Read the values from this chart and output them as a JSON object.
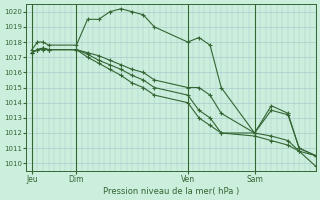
{
  "title": "Pression niveau de la mer( hPa )",
  "ylabel_values": [
    1010,
    1011,
    1012,
    1013,
    1014,
    1015,
    1016,
    1017,
    1018,
    1019,
    1020
  ],
  "ylim": [
    1009.5,
    1020.5
  ],
  "background_color": "#cceedd",
  "grid_color": "#aacccc",
  "line_color": "#336633",
  "x_ticks_labels": [
    "Jeu",
    "Dim",
    "Ven",
    "Sam"
  ],
  "x_ticks_pos": [
    0,
    8,
    28,
    40
  ],
  "x_major_vlines": [
    0,
    8,
    28,
    40
  ],
  "xlim": [
    -1,
    51
  ],
  "series1": [
    [
      0,
      1017.5
    ],
    [
      1,
      1018.0
    ],
    [
      2,
      1018.0
    ],
    [
      3,
      1017.8
    ],
    [
      8,
      1017.8
    ],
    [
      10,
      1019.5
    ],
    [
      12,
      1019.5
    ],
    [
      14,
      1020.0
    ],
    [
      16,
      1020.2
    ],
    [
      18,
      1020.0
    ],
    [
      20,
      1019.8
    ],
    [
      22,
      1019.0
    ],
    [
      28,
      1018.0
    ],
    [
      30,
      1018.3
    ],
    [
      32,
      1017.8
    ],
    [
      34,
      1015.0
    ],
    [
      40,
      1012.0
    ],
    [
      43,
      1013.8
    ],
    [
      46,
      1013.3
    ],
    [
      48,
      1011.0
    ],
    [
      51,
      1010.5
    ]
  ],
  "series2": [
    [
      0,
      1017.3
    ],
    [
      1,
      1017.5
    ],
    [
      2,
      1017.6
    ],
    [
      3,
      1017.5
    ],
    [
      8,
      1017.5
    ],
    [
      10,
      1017.3
    ],
    [
      12,
      1017.1
    ],
    [
      14,
      1016.8
    ],
    [
      16,
      1016.5
    ],
    [
      18,
      1016.2
    ],
    [
      20,
      1016.0
    ],
    [
      22,
      1015.5
    ],
    [
      28,
      1015.0
    ],
    [
      30,
      1015.0
    ],
    [
      32,
      1014.5
    ],
    [
      34,
      1013.3
    ],
    [
      40,
      1012.0
    ],
    [
      43,
      1013.5
    ],
    [
      46,
      1013.2
    ],
    [
      48,
      1011.0
    ],
    [
      51,
      1010.5
    ]
  ],
  "series3": [
    [
      0,
      1017.3
    ],
    [
      1,
      1017.5
    ],
    [
      2,
      1017.6
    ],
    [
      3,
      1017.5
    ],
    [
      8,
      1017.5
    ],
    [
      10,
      1017.2
    ],
    [
      12,
      1016.8
    ],
    [
      14,
      1016.5
    ],
    [
      16,
      1016.2
    ],
    [
      18,
      1015.8
    ],
    [
      20,
      1015.5
    ],
    [
      22,
      1015.0
    ],
    [
      28,
      1014.5
    ],
    [
      30,
      1013.5
    ],
    [
      32,
      1013.0
    ],
    [
      34,
      1012.0
    ],
    [
      40,
      1012.0
    ],
    [
      43,
      1011.8
    ],
    [
      46,
      1011.5
    ],
    [
      48,
      1010.8
    ],
    [
      51,
      1009.8
    ]
  ],
  "series4": [
    [
      0,
      1017.3
    ],
    [
      1,
      1017.5
    ],
    [
      2,
      1017.5
    ],
    [
      3,
      1017.5
    ],
    [
      8,
      1017.5
    ],
    [
      10,
      1017.0
    ],
    [
      12,
      1016.6
    ],
    [
      14,
      1016.2
    ],
    [
      16,
      1015.8
    ],
    [
      18,
      1015.3
    ],
    [
      20,
      1015.0
    ],
    [
      22,
      1014.5
    ],
    [
      28,
      1014.0
    ],
    [
      30,
      1013.0
    ],
    [
      32,
      1012.5
    ],
    [
      34,
      1012.0
    ],
    [
      40,
      1011.8
    ],
    [
      43,
      1011.5
    ],
    [
      46,
      1011.2
    ],
    [
      48,
      1010.8
    ],
    [
      51,
      1010.5
    ]
  ]
}
